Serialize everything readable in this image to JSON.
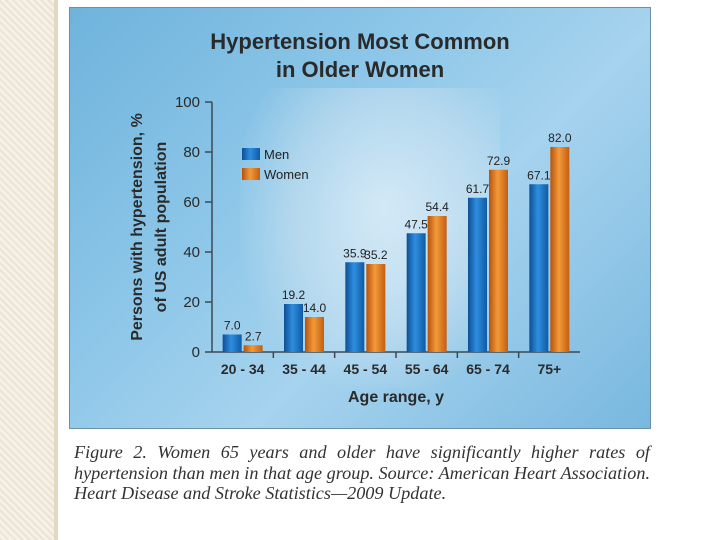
{
  "chart_data": {
    "type": "bar",
    "title_line1": "Hypertension Most Common",
    "title_line2": "in Older Women",
    "xlabel": "Age range, y",
    "ylabel_line1": "Persons with hypertension, %",
    "ylabel_line2": "of US adult population",
    "ylim": [
      0,
      100
    ],
    "yticks": [
      0,
      20,
      40,
      60,
      80,
      100
    ],
    "categories": [
      "20 - 34",
      "35 - 44",
      "45 - 54",
      "55 - 64",
      "65 - 74",
      "75+"
    ],
    "series": [
      {
        "name": "Men",
        "values": [
          7.0,
          19.2,
          35.9,
          47.5,
          61.7,
          67.1
        ],
        "color": "#1f78c8"
      },
      {
        "name": "Women",
        "values": [
          2.7,
          14.0,
          35.2,
          54.4,
          72.9,
          82.0
        ],
        "color": "#e07a1e"
      }
    ],
    "value_labels": {
      "Men": [
        "7.0",
        "19.2",
        "35.9",
        "47.5",
        "61.7",
        "67.1"
      ],
      "Women": [
        "2.7",
        "14.0",
        "35.2",
        "54.4",
        "72.9",
        "82.0"
      ]
    },
    "legend_position": "upper-left"
  },
  "caption": "Figure 2. Women 65 years and older have significantly higher rates of hypertension than men in that age group. Source: American Heart Association. Heart Disease and Stroke Statistics—2009 Update."
}
